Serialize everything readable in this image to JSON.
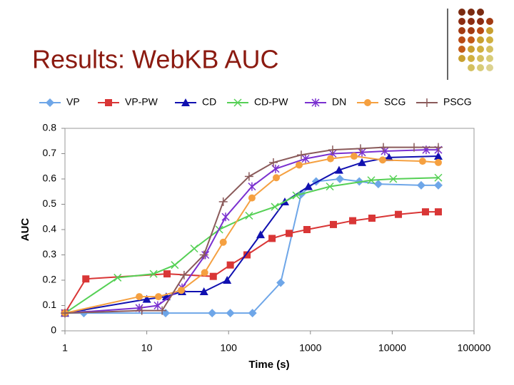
{
  "header": {
    "title": "Results: WebKB AUC"
  },
  "chart_data": {
    "type": "line",
    "x_label": "Time (s)",
    "y_label": "AUC",
    "log_x": true,
    "xlim": [
      1,
      100000
    ],
    "xticks": [
      1,
      10,
      100,
      1000,
      10000,
      100000
    ],
    "ylim": [
      0,
      0.8
    ],
    "yticks": [
      0,
      0.1,
      0.2,
      0.3,
      0.4,
      0.5,
      0.6,
      0.7,
      0.8
    ],
    "legend": "top",
    "series": [
      {
        "name": "VP",
        "color": "#6ea6e8",
        "marker": "diamond",
        "x": [
          1,
          1.7,
          17,
          63,
          105,
          196,
          433,
          773,
          1175,
          2290,
          3960,
          6760,
          22600,
          36600
        ],
        "values": [
          0.07,
          0.07,
          0.07,
          0.07,
          0.07,
          0.07,
          0.19,
          0.54,
          0.59,
          0.6,
          0.59,
          0.58,
          0.575,
          0.575
        ]
      },
      {
        "name": "VP-PW",
        "color": "#d93636",
        "marker": "square",
        "x": [
          1,
          1.8,
          17.7,
          65,
          105,
          168,
          340,
          550,
          908,
          1910,
          3290,
          5650,
          11900,
          25500,
          36600
        ],
        "values": [
          0.07,
          0.205,
          0.225,
          0.215,
          0.26,
          0.3,
          0.365,
          0.385,
          0.4,
          0.42,
          0.435,
          0.445,
          0.46,
          0.47,
          0.47
        ]
      },
      {
        "name": "CD",
        "color": "#1010b0",
        "marker": "triangle",
        "x": [
          1,
          10,
          17.3,
          27,
          50,
          96,
          246,
          487,
          946,
          2240,
          4270,
          9160,
          36600
        ],
        "values": [
          0.07,
          0.125,
          0.135,
          0.155,
          0.155,
          0.2,
          0.38,
          0.51,
          0.57,
          0.635,
          0.665,
          0.685,
          0.69
        ]
      },
      {
        "name": "CD-PW",
        "color": "#55d055",
        "marker": "x",
        "x": [
          1,
          4.4,
          12.1,
          22,
          38,
          77,
          178,
          368,
          672,
          1730,
          5540,
          10300,
          36600
        ],
        "values": [
          0.07,
          0.21,
          0.225,
          0.26,
          0.325,
          0.4,
          0.455,
          0.49,
          0.535,
          0.57,
          0.595,
          0.6,
          0.605
        ]
      },
      {
        "name": "DN",
        "color": "#7a30d0",
        "marker": "star",
        "x": [
          1,
          8.1,
          13.6,
          27,
          52,
          92,
          193,
          375,
          873,
          1870,
          4270,
          8110,
          26000,
          36600
        ],
        "values": [
          0.07,
          0.09,
          0.1,
          0.17,
          0.3,
          0.45,
          0.57,
          0.64,
          0.68,
          0.7,
          0.705,
          0.71,
          0.715,
          0.715
        ]
      },
      {
        "name": "SCG",
        "color": "#f5a040",
        "marker": "circle",
        "x": [
          1,
          8.1,
          13.9,
          26.4,
          51,
          86,
          193,
          383,
          728,
          1760,
          3420,
          7640,
          23500,
          36600
        ],
        "values": [
          0.07,
          0.135,
          0.135,
          0.16,
          0.23,
          0.35,
          0.525,
          0.605,
          0.655,
          0.68,
          0.69,
          0.675,
          0.67,
          0.665
        ]
      },
      {
        "name": "PSCG",
        "color": "#8a5a5a",
        "marker": "plus",
        "x": [
          1,
          8.7,
          15.4,
          28.6,
          50,
          86,
          178,
          353,
          773,
          1870,
          4100,
          7800,
          18500,
          36600
        ],
        "values": [
          0.07,
          0.08,
          0.08,
          0.22,
          0.3,
          0.51,
          0.61,
          0.665,
          0.695,
          0.715,
          0.72,
          0.725,
          0.725,
          0.725
        ]
      }
    ]
  }
}
